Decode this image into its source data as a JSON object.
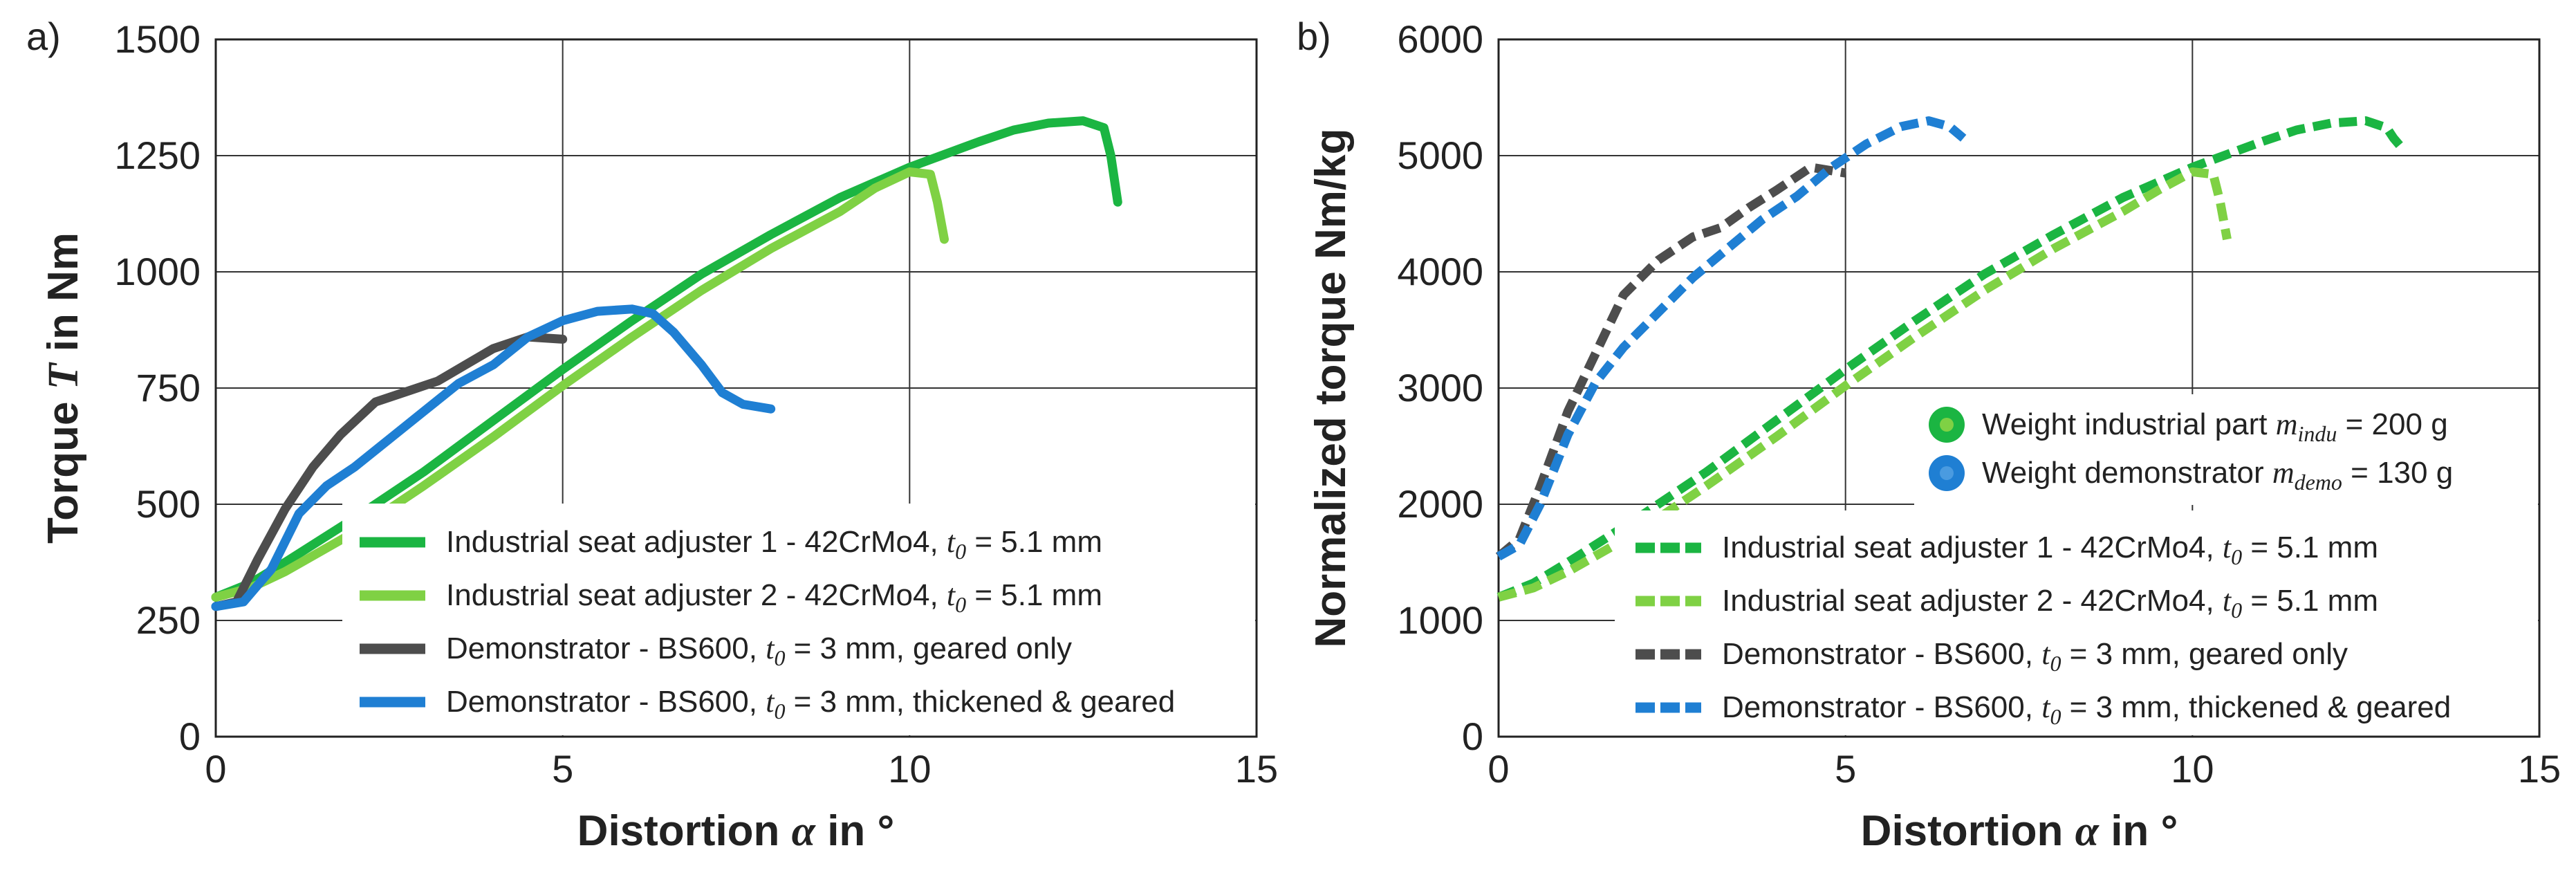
{
  "chart_data": [
    {
      "panel_label": "a)",
      "type": "line",
      "ylabel": "Torque T in Nm",
      "ylabel_prefix": "Torque ",
      "ylabel_symbol": "T",
      "ylabel_suffix": " in Nm",
      "xlabel_prefix": "Distortion ",
      "xlabel_symbol": "α",
      "xlabel_suffix": " in °",
      "xlim": [
        0,
        15
      ],
      "ylim": [
        0,
        1500
      ],
      "xticks": [
        "0",
        "5",
        "10",
        "15"
      ],
      "yticks": [
        "0",
        "250",
        "500",
        "750",
        "1000",
        "1250",
        "1500"
      ],
      "grid": true,
      "legend_position": "bottom-right",
      "legend": [
        {
          "pre": "Industrial seat adjuster 1 - 42CrMo4, ",
          "sym": "t",
          "sub": "0",
          "post": " = 5.1 mm"
        },
        {
          "pre": "Industrial seat adjuster 2 - 42CrMo4, ",
          "sym": "t",
          "sub": "0",
          "post": " = 5.1 mm"
        },
        {
          "pre": "Demonstrator - BS600, ",
          "sym": "t",
          "sub": "0",
          "post": " = 3 mm, geared only"
        },
        {
          "pre": "Demonstrator - BS600, ",
          "sym": "t",
          "sub": "0",
          "post": " = 3 mm, thickened & geared"
        }
      ],
      "series": [
        {
          "name": "Industrial seat adjuster 1 - 42CrMo4, t0 = 5.1 mm",
          "color": "#1bb542",
          "style": "solid",
          "x": [
            0,
            0.5,
            1,
            2,
            3,
            4,
            5,
            6,
            7,
            8,
            9,
            10,
            11,
            11.5,
            12,
            12.5,
            12.8,
            12.9,
            13.0
          ],
          "y": [
            300,
            330,
            375,
            470,
            570,
            680,
            790,
            895,
            995,
            1080,
            1160,
            1225,
            1280,
            1305,
            1320,
            1325,
            1310,
            1250,
            1150
          ]
        },
        {
          "name": "Industrial seat adjuster 2 - 42CrMo4, t0 = 5.1 mm",
          "color": "#7fd144",
          "style": "solid",
          "x": [
            0,
            0.5,
            1,
            2,
            3,
            4,
            5,
            6,
            7,
            8,
            9,
            9.5,
            10,
            10.3,
            10.4,
            10.5
          ],
          "y": [
            300,
            320,
            355,
            440,
            540,
            645,
            755,
            860,
            960,
            1050,
            1130,
            1180,
            1215,
            1210,
            1150,
            1070
          ]
        },
        {
          "name": "Demonstrator - BS600, t0 = 3 mm, geared only",
          "color": "#4d4d4d",
          "style": "solid",
          "x": [
            0,
            0.3,
            0.6,
            1.0,
            1.4,
            1.8,
            2.3,
            2.8,
            3.2,
            3.6,
            4.0,
            4.5,
            5.0
          ],
          "y": [
            280,
            290,
            380,
            490,
            580,
            650,
            720,
            745,
            765,
            800,
            835,
            860,
            855
          ]
        },
        {
          "name": "Demonstrator - BS600, t0 = 3 mm, thickened & geared",
          "color": "#1f7fd3",
          "style": "solid",
          "x": [
            0,
            0.4,
            0.8,
            1.2,
            1.6,
            2.0,
            2.5,
            3.0,
            3.5,
            4.0,
            4.5,
            5.0,
            5.5,
            6.0,
            6.3,
            6.6,
            7.0,
            7.3,
            7.6,
            8.0
          ],
          "y": [
            280,
            290,
            360,
            480,
            540,
            580,
            640,
            700,
            760,
            800,
            860,
            895,
            915,
            920,
            910,
            870,
            800,
            740,
            715,
            705
          ]
        }
      ]
    },
    {
      "panel_label": "b)",
      "type": "line",
      "ylabel": "Normalized torque Nm/kg",
      "ylabel_prefix": "Normalized torque Nm/kg",
      "xlabel_prefix": "Distortion ",
      "xlabel_symbol": "α",
      "xlabel_suffix": " in °",
      "xlim": [
        0,
        15
      ],
      "ylim": [
        0,
        6000
      ],
      "xticks": [
        "0",
        "5",
        "10",
        "15"
      ],
      "yticks": [
        "0",
        "1000",
        "2000",
        "3000",
        "4000",
        "5000",
        "6000"
      ],
      "grid": true,
      "legend_position": "bottom-right",
      "weight_legend": [
        {
          "pre": "Weight industrial part ",
          "sym": "m",
          "sub": "indu",
          "post": " = 200 g",
          "color": "#1bb542",
          "inner": "#7fd144"
        },
        {
          "pre": "Weight demonstrator ",
          "sym": "m",
          "sub": "demo",
          "post": " = 130 g",
          "color": "#1f7fd3",
          "inner": "#4a9be0"
        }
      ],
      "legend": [
        {
          "pre": "Industrial seat adjuster 1 - 42CrMo4, ",
          "sym": "t",
          "sub": "0",
          "post": " = 5.1 mm"
        },
        {
          "pre": "Industrial seat adjuster 2 - 42CrMo4, ",
          "sym": "t",
          "sub": "0",
          "post": " = 5.1 mm"
        },
        {
          "pre": "Demonstrator - BS600, ",
          "sym": "t",
          "sub": "0",
          "post": " = 3 mm, geared only"
        },
        {
          "pre": "Demonstrator - BS600, ",
          "sym": "t",
          "sub": "0",
          "post": " = 3 mm, thickened & geared"
        }
      ],
      "series": [
        {
          "name": "Industrial seat adjuster 1 - 42CrMo4, t0 = 5.1 mm",
          "color": "#1bb542",
          "style": "dashed",
          "x": [
            0,
            0.5,
            1,
            2,
            3,
            4,
            5,
            6,
            7,
            8,
            9,
            10,
            11,
            11.5,
            12,
            12.5,
            12.8,
            12.9,
            13.0
          ],
          "y": [
            1200,
            1320,
            1500,
            1880,
            2280,
            2720,
            3160,
            3580,
            3980,
            4320,
            4640,
            4900,
            5120,
            5220,
            5280,
            5300,
            5240,
            5150,
            5080
          ]
        },
        {
          "name": "Industrial seat adjuster 2 - 42CrMo4, t0 = 5.1 mm",
          "color": "#7fd144",
          "style": "dashed",
          "x": [
            0,
            0.5,
            1,
            2,
            3,
            4,
            5,
            6,
            7,
            8,
            9,
            9.5,
            10,
            10.3,
            10.4,
            10.5
          ],
          "y": [
            1200,
            1280,
            1420,
            1760,
            2160,
            2580,
            3020,
            3440,
            3840,
            4200,
            4520,
            4700,
            4860,
            4840,
            4600,
            4280
          ]
        },
        {
          "name": "Demonstrator - BS600, t0 = 3 mm, geared only",
          "color": "#4d4d4d",
          "style": "dashed",
          "x": [
            0,
            0.3,
            0.6,
            1.0,
            1.4,
            1.8,
            2.3,
            2.8,
            3.2,
            3.6,
            4.0,
            4.5,
            5.0
          ],
          "y": [
            1550,
            1700,
            2150,
            2800,
            3300,
            3800,
            4100,
            4300,
            4380,
            4550,
            4700,
            4900,
            4850
          ]
        },
        {
          "name": "Demonstrator - BS600, t0 = 3 mm, thickened & geared",
          "color": "#1f7fd3",
          "style": "dashed",
          "x": [
            0,
            0.3,
            0.6,
            1.0,
            1.4,
            1.8,
            2.3,
            2.8,
            3.3,
            3.8,
            4.3,
            4.8,
            5.3,
            5.8,
            6.2,
            6.5,
            6.7
          ],
          "y": [
            1550,
            1650,
            2000,
            2600,
            3050,
            3350,
            3650,
            3950,
            4200,
            4450,
            4650,
            4900,
            5100,
            5250,
            5300,
            5250,
            5150
          ]
        }
      ]
    }
  ]
}
